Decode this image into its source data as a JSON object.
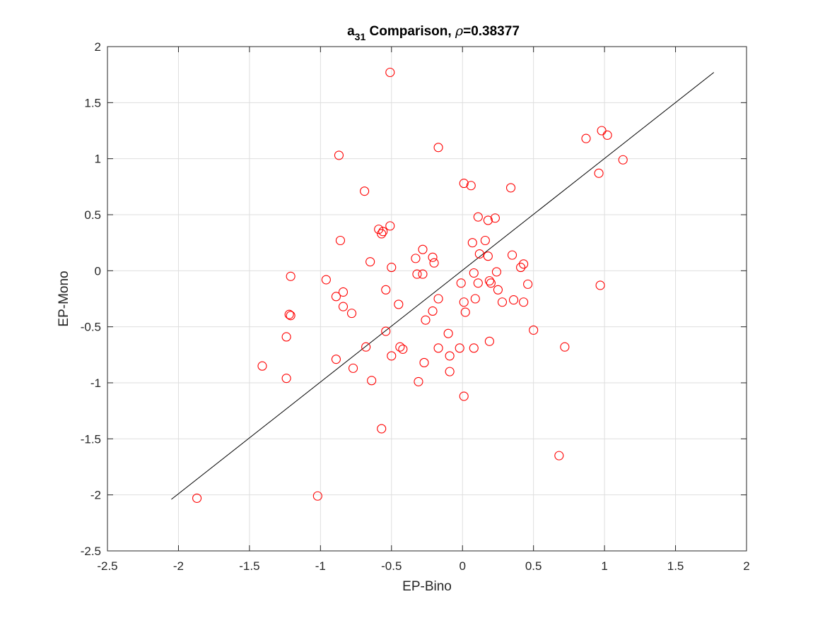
{
  "chart_data": {
    "type": "scatter",
    "title": {
      "main": "a",
      "subscript": "31",
      "middle": " Comparison, ",
      "rho_symbol": "ρ",
      "rest": "=0.38377"
    },
    "xlabel": "EP-Bino",
    "ylabel": "EP-Mono",
    "xlim": [
      -2.5,
      2
    ],
    "ylim": [
      -2.5,
      2
    ],
    "xticks": [
      -2.5,
      -2,
      -1.5,
      -1,
      -0.5,
      0,
      0.5,
      1,
      1.5,
      2
    ],
    "yticks": [
      -2.5,
      -2,
      -1.5,
      -1,
      -0.5,
      0,
      0.5,
      1,
      1.5,
      2
    ],
    "xtick_labels": [
      "-2.5",
      "-2",
      "-1.5",
      "-1",
      "-0.5",
      "0",
      "0.5",
      "1",
      "1.5",
      "2"
    ],
    "ytick_labels": [
      "-2.5",
      "-2",
      "-1.5",
      "-1",
      "-0.5",
      "0",
      "0.5",
      "1",
      "1.5",
      "2"
    ],
    "grid": true,
    "marker_color": "#ff0000",
    "line_color": "#000000",
    "reference_line": {
      "x": [
        -2.05,
        1.77
      ],
      "y": [
        -2.04,
        1.77
      ]
    },
    "points": {
      "x": [
        -0.51,
        -0.87,
        -0.17,
        -0.69,
        0.01,
        0.06,
        0.34,
        0.87,
        0.98,
        1.02,
        1.13,
        0.96,
        -0.59,
        -0.57,
        -0.56,
        -0.51,
        -0.86,
        -0.65,
        -0.5,
        -0.33,
        -0.32,
        -0.28,
        -0.28,
        -0.2,
        -0.21,
        -1.21,
        -0.96,
        -0.89,
        -0.84,
        -0.84,
        -0.78,
        -1.22,
        -1.21,
        -1.24,
        -0.54,
        -0.45,
        -0.17,
        -0.21,
        -0.26,
        0.11,
        0.18,
        0.23,
        0.16,
        0.07,
        0.12,
        0.18,
        0.35,
        0.08,
        0.11,
        0.19,
        0.2,
        0.24,
        0.25,
        0.41,
        0.43,
        0.46,
        0.28,
        0.36,
        0.43,
        -0.01,
        0.09,
        0.01,
        0.02,
        -0.54,
        -0.68,
        -0.44,
        -0.42,
        -0.5,
        -0.27,
        -0.1,
        -0.17,
        -0.02,
        0.08,
        0.19,
        0.5,
        0.72,
        -0.89,
        -0.77,
        -0.64,
        -0.31,
        -0.09,
        -0.09,
        0.01,
        -1.41,
        -1.24,
        -0.57,
        0.68,
        -1.87,
        -1.02,
        0.97
      ],
      "y": [
        1.77,
        1.03,
        1.1,
        0.71,
        0.78,
        0.76,
        0.74,
        1.18,
        1.25,
        1.21,
        0.99,
        0.87,
        0.37,
        0.33,
        0.35,
        0.4,
        0.27,
        0.08,
        0.03,
        0.11,
        -0.03,
        -0.03,
        0.19,
        0.07,
        0.12,
        -0.05,
        -0.08,
        -0.23,
        -0.19,
        -0.32,
        -0.38,
        -0.39,
        -0.4,
        -0.59,
        -0.17,
        -0.3,
        -0.25,
        -0.36,
        -0.44,
        0.48,
        0.45,
        0.47,
        0.27,
        0.25,
        0.15,
        0.13,
        0.14,
        -0.02,
        -0.11,
        -0.09,
        -0.11,
        -0.01,
        -0.17,
        0.03,
        0.06,
        -0.12,
        -0.28,
        -0.26,
        -0.28,
        -0.11,
        -0.25,
        -0.28,
        -0.37,
        -0.54,
        -0.68,
        -0.68,
        -0.7,
        -0.76,
        -0.82,
        -0.56,
        -0.69,
        -0.69,
        -0.69,
        -0.63,
        -0.53,
        -0.68,
        -0.79,
        -0.87,
        -0.98,
        -0.99,
        -0.76,
        -0.9,
        -1.12,
        -0.85,
        -0.96,
        -1.41,
        -1.65,
        -2.03,
        -2.01,
        -0.13
      ]
    }
  }
}
